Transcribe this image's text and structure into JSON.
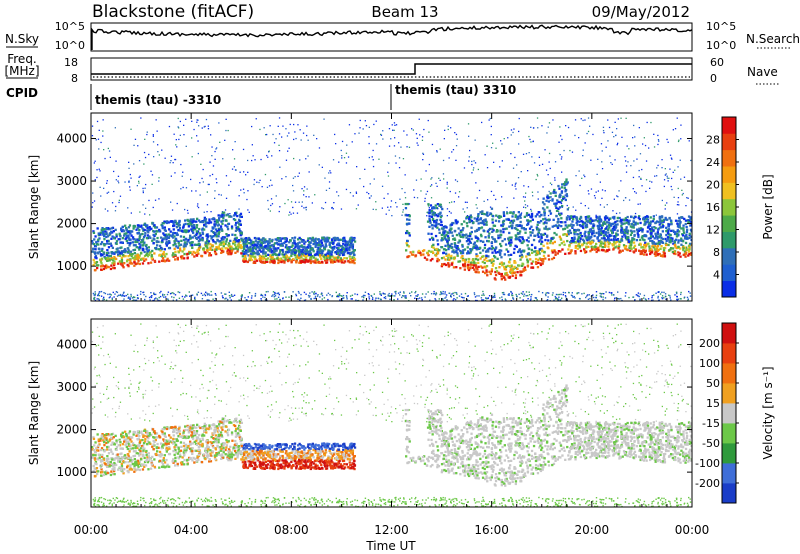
{
  "header": {
    "station": "Blackstone (fitACF)",
    "beam": "Beam 13",
    "date": "09/May/2012"
  },
  "panels": {
    "nsky": {
      "label": "N.Sky",
      "right_label": "N.Search",
      "ticks": [
        "10^5",
        "10^0"
      ],
      "right_ticks": [
        "10^5",
        "10^0"
      ]
    },
    "freq": {
      "label_line1": "Freq.",
      "label_line2": "[MHz]",
      "right_label": "Nave",
      "ticks": [
        "18",
        "8"
      ],
      "right_ticks": [
        "60",
        "0"
      ]
    },
    "cpid": {
      "label": "CPID",
      "segments": [
        "themis (tau) -3310",
        "themis (tau) 3310"
      ]
    }
  },
  "chart_data": [
    {
      "type": "heatmap",
      "name": "power",
      "ylabel": "Slant Range [km]",
      "yticks": [
        "4000",
        "3000",
        "2000",
        "1000"
      ],
      "ylim": [
        180,
        4600
      ],
      "colorbar": {
        "label": "Power [dB]",
        "ticks": [
          "28",
          "24",
          "20",
          "16",
          "12",
          "8",
          "4"
        ],
        "colors": [
          "#0a2ee6",
          "#1f5fd0",
          "#2f6fb8",
          "#2f9a6a",
          "#4daa48",
          "#8cc63a",
          "#f0c020",
          "#f59c10",
          "#f07010",
          "#e84010",
          "#e01010"
        ],
        "range": [
          0,
          30
        ]
      }
    },
    {
      "type": "heatmap",
      "name": "velocity",
      "ylabel": "Slant Range [km]",
      "yticks": [
        "4000",
        "3000",
        "2000",
        "1000"
      ],
      "ylim": [
        180,
        4600
      ],
      "xlabel": "Time UT",
      "xticks": [
        "00:00",
        "04:00",
        "08:00",
        "12:00",
        "16:00",
        "20:00",
        "00:00"
      ],
      "colorbar": {
        "label": "Velocity [m s⁻¹]",
        "ticks": [
          "200",
          "100",
          "50",
          "15",
          "-15",
          "-50",
          "-100",
          "-200"
        ],
        "colors": [
          "#1a3dc8",
          "#3f6ed8",
          "#2f9a3c",
          "#6cc848",
          "#c8c8c8",
          "#f0a020",
          "#f07010",
          "#e84010",
          "#d01010"
        ]
      }
    }
  ]
}
